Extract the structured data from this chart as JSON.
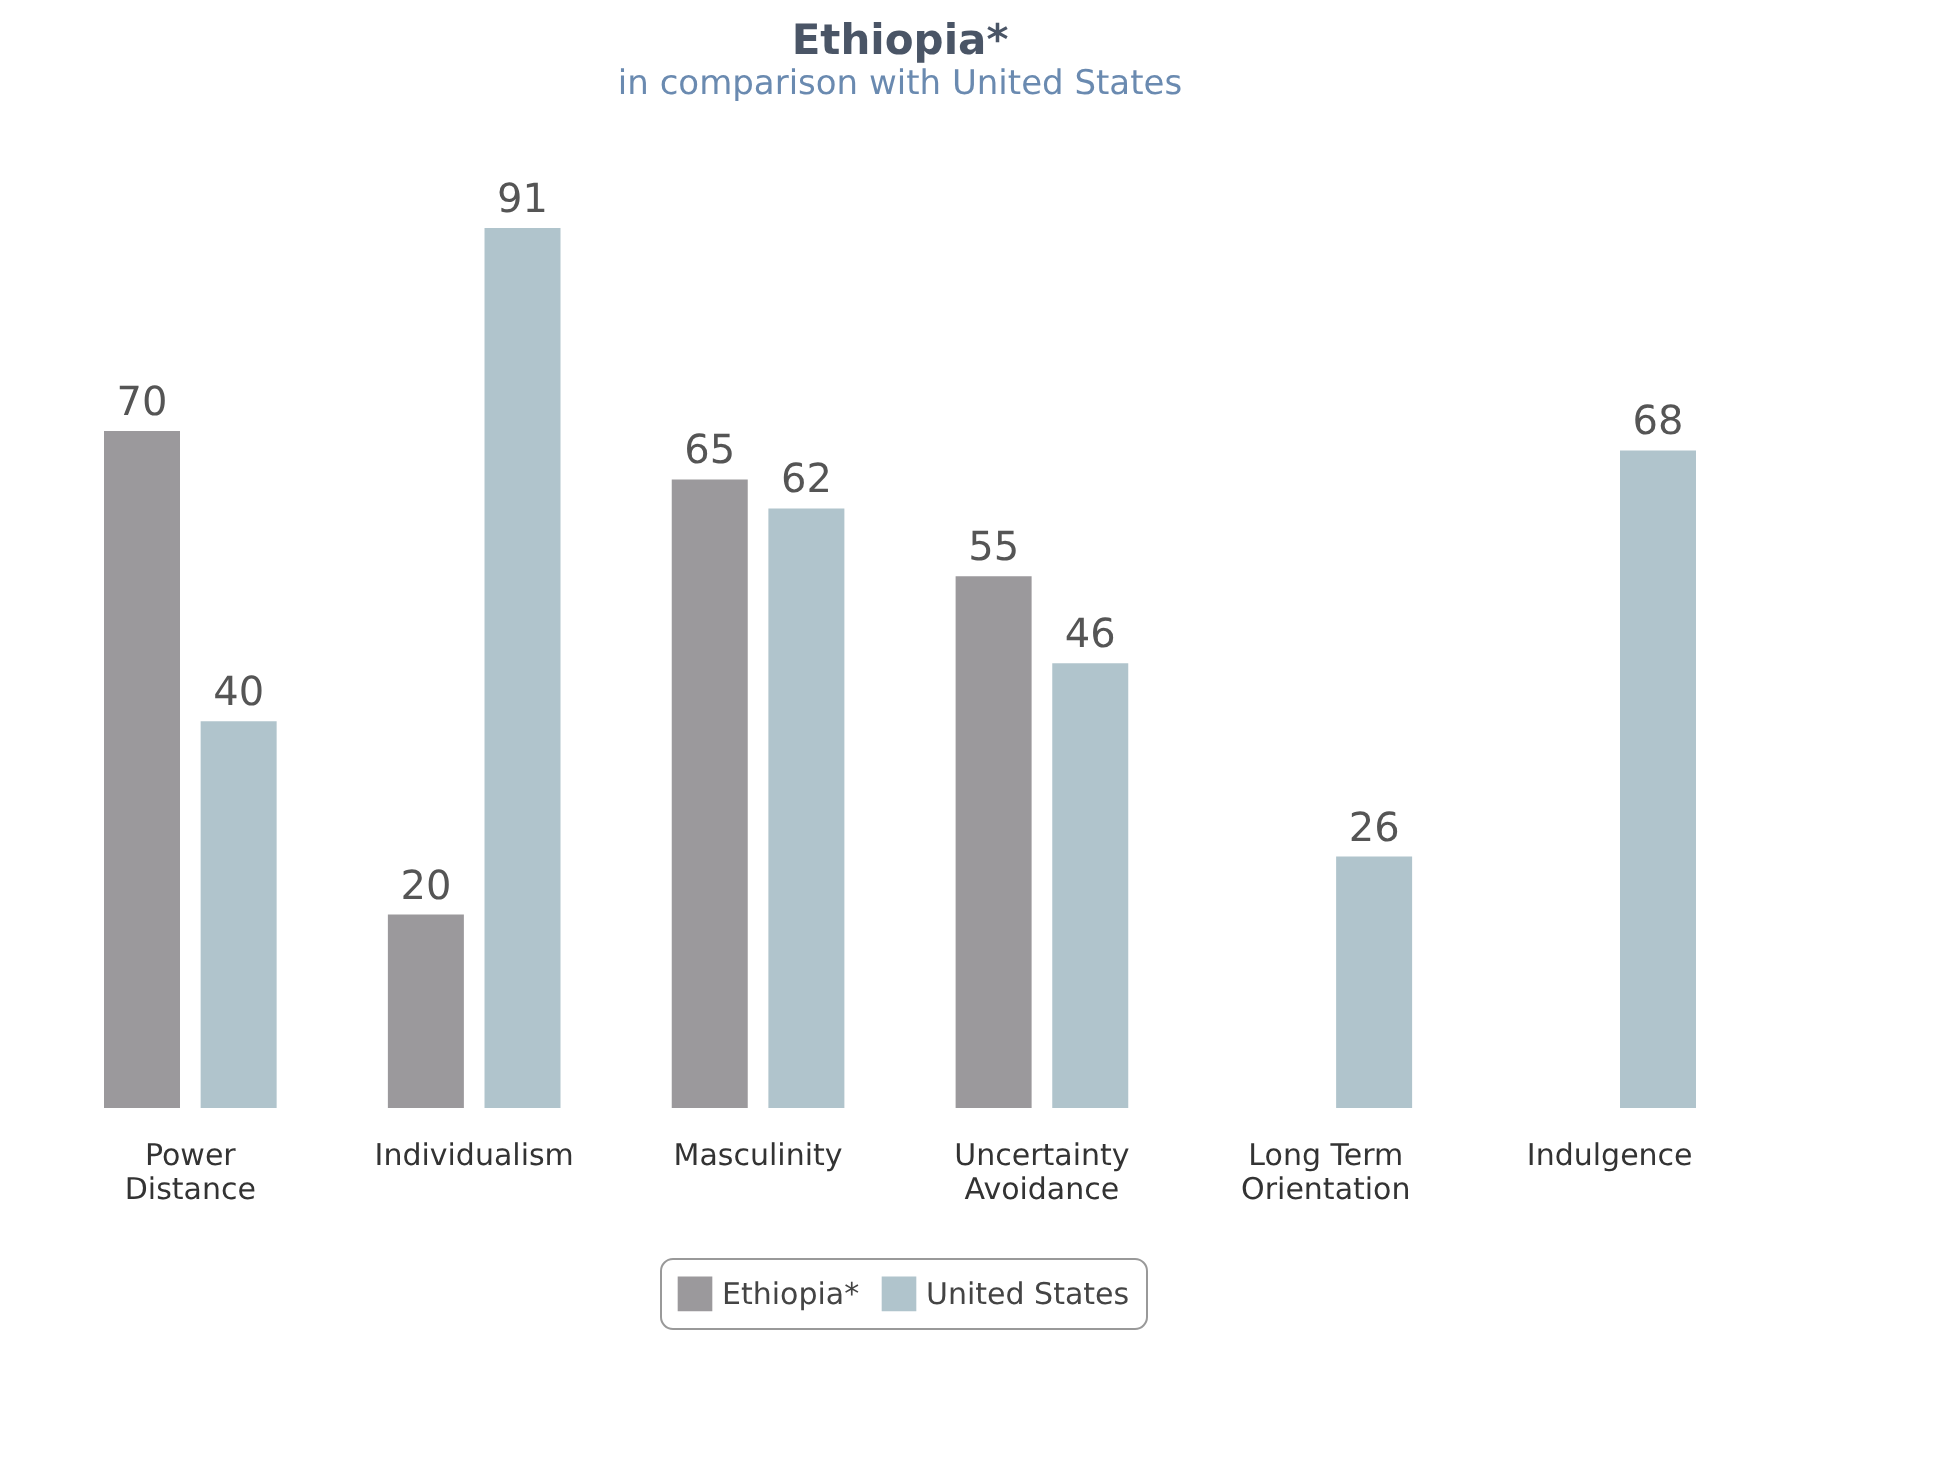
{
  "chart_data": {
    "type": "bar",
    "title": "Ethiopia*",
    "subtitle": "in comparison with United States",
    "categories": [
      "Power Distance",
      "Individualism",
      "Masculinity",
      "Uncertainty Avoidance",
      "Long Term Orientation",
      "Indulgence"
    ],
    "series": [
      {
        "name": "Ethiopia*",
        "color": "#9b999c",
        "values": [
          70,
          20,
          65,
          55,
          null,
          null
        ]
      },
      {
        "name": "United States",
        "color": "#b0c4cc",
        "values": [
          40,
          91,
          62,
          46,
          26,
          68
        ]
      }
    ],
    "data_labels": true,
    "legend": "bottom"
  }
}
